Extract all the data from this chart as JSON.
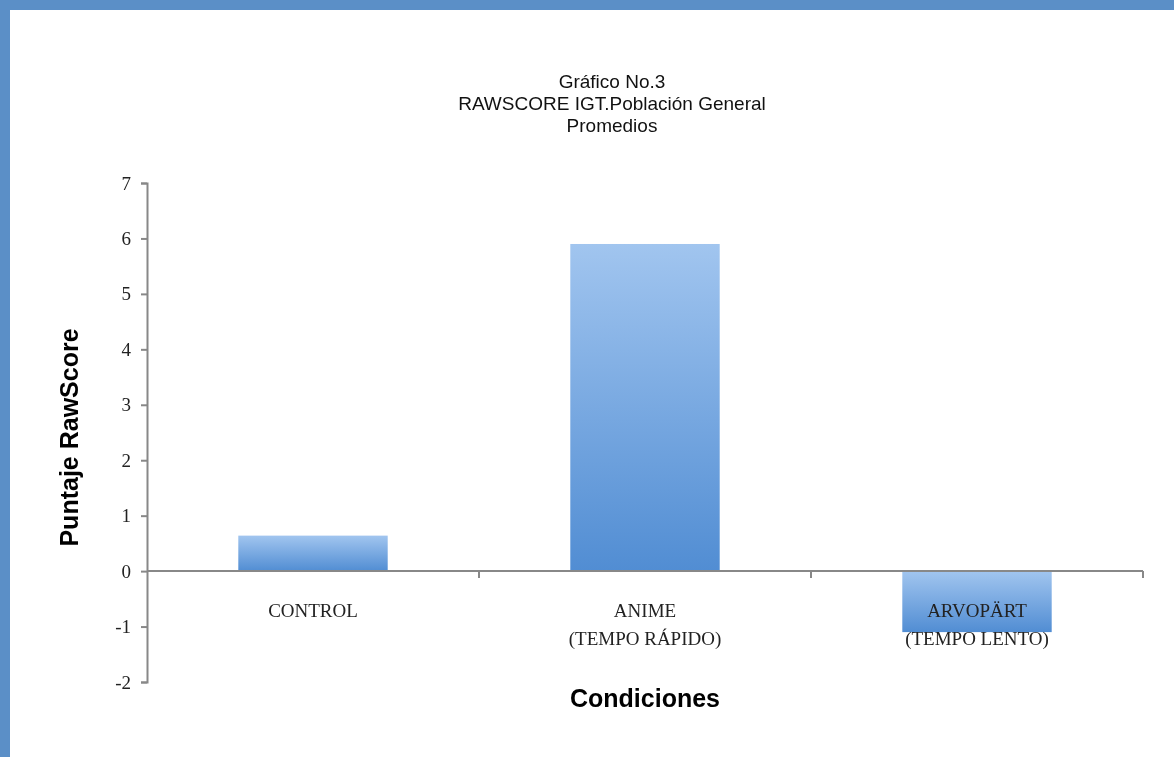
{
  "chart_data": {
    "type": "bar",
    "title": "Gráfico No.3\nRAWSCORE IGT.Población General\nPromedios",
    "xlabel": "Condiciones",
    "ylabel": "Puntaje RawScore",
    "categories": [
      "CONTROL",
      "ANIME\n(TEMPO RÁPIDO)",
      "ARVOPÄRT\n(TEMPO LENTO)"
    ],
    "values": [
      0.64,
      5.9,
      -1.1
    ],
    "color": "#6fa6e6",
    "ylim": [
      -2,
      7
    ],
    "yticks": [
      -2,
      -1,
      0,
      1,
      2,
      3,
      4,
      5,
      6,
      7
    ],
    "grid": false
  }
}
